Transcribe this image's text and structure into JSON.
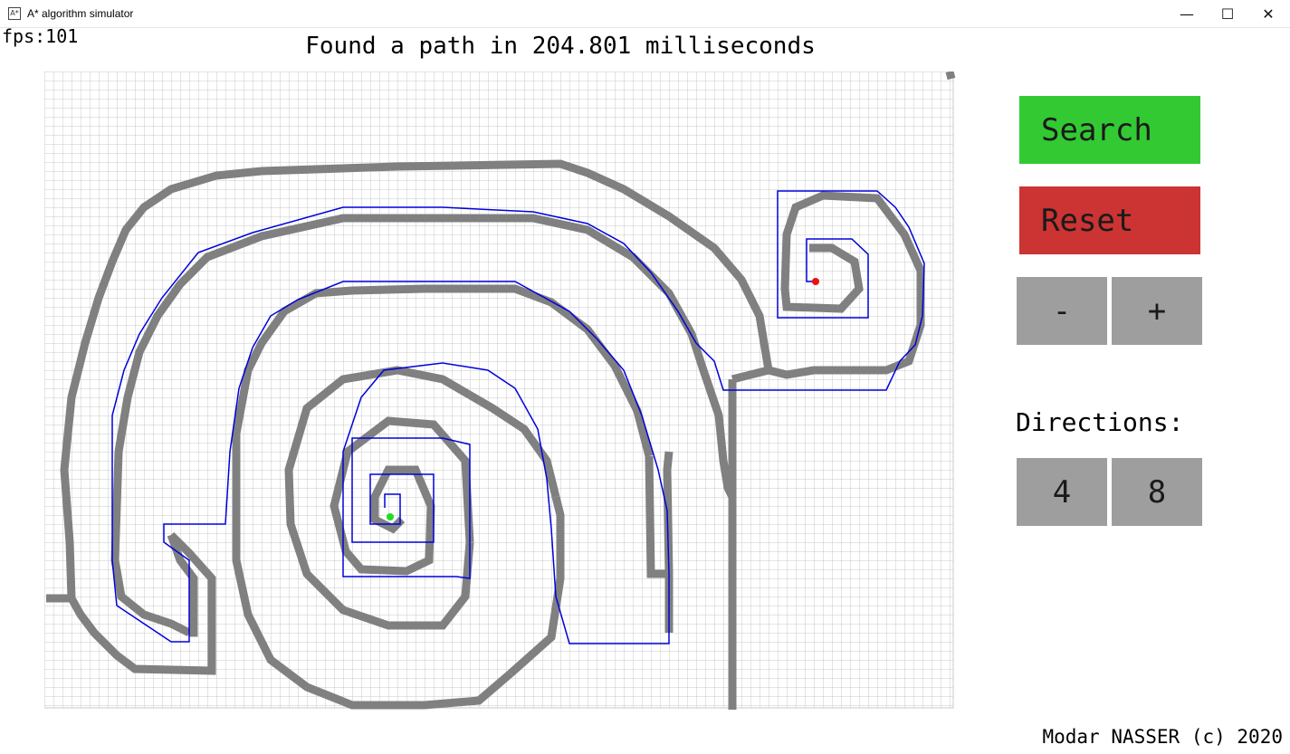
{
  "window": {
    "title": "A* algorithm simulator",
    "icon_text": "A*",
    "minimize": "—",
    "maximize": "☐",
    "close": "✕"
  },
  "fps_text": "fps:101",
  "status_text": "Found a path in 204.801 milliseconds",
  "controls": {
    "search_label": "Search",
    "reset_label": "Reset",
    "minus_label": "-",
    "plus_label": "+",
    "directions_label": "Directions:",
    "dir4_label": "4",
    "dir8_label": "8"
  },
  "credit": "Modar NASSER (c) 2020",
  "colors": {
    "search": "#33c933",
    "reset": "#cc3333",
    "button_gray": "#9e9e9e",
    "wall": "#808080",
    "path": "#0000dd",
    "start": "#22dd22",
    "goal": "#ee1111",
    "grid_line": "#c8c8c8"
  }
}
